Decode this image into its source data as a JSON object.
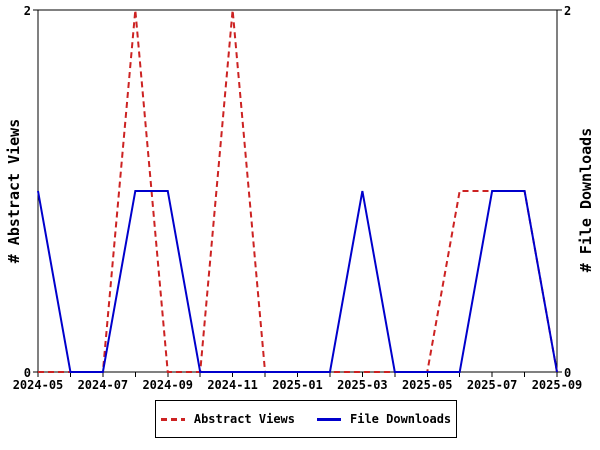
{
  "chart_data": {
    "type": "line",
    "title": "",
    "x": [
      "2024-05",
      "2024-06",
      "2024-07",
      "2024-08",
      "2024-09",
      "2024-10",
      "2024-11",
      "2024-12",
      "2025-01",
      "2025-02",
      "2025-03",
      "2025-04",
      "2025-05",
      "2025-06",
      "2025-07",
      "2025-08",
      "2025-09"
    ],
    "x_label_every": 2,
    "x_tick_labels": [
      "2024-05",
      "2024-07",
      "2024-09",
      "2024-11",
      "2025-01",
      "2025-03",
      "2025-05",
      "2025-07",
      "2025-09"
    ],
    "ylim": [
      0,
      2
    ],
    "y_ticks": [
      {
        "value": 0,
        "label": "0"
      },
      {
        "value": 2,
        "label": "2"
      }
    ],
    "ylabel_left": "# Abstract Views",
    "ylabel_right": "# File Downloads",
    "grid": false,
    "legend_position": "bottom-center",
    "axis_color": "#000000",
    "background_color": "#ffffff",
    "series": [
      {
        "name": "Abstract Views",
        "color": "#cc2222",
        "style": "dashed",
        "axis": "left",
        "values": [
          0,
          0,
          0,
          2,
          0,
          0,
          2,
          0,
          0,
          0,
          0,
          0,
          0,
          1,
          1,
          1,
          0
        ]
      },
      {
        "name": "File Downloads",
        "color": "#0000cc",
        "style": "solid",
        "axis": "right",
        "values": [
          1,
          0,
          0,
          1,
          1,
          0,
          0,
          0,
          0,
          0,
          1,
          0,
          0,
          0,
          1,
          1,
          0
        ]
      }
    ]
  }
}
